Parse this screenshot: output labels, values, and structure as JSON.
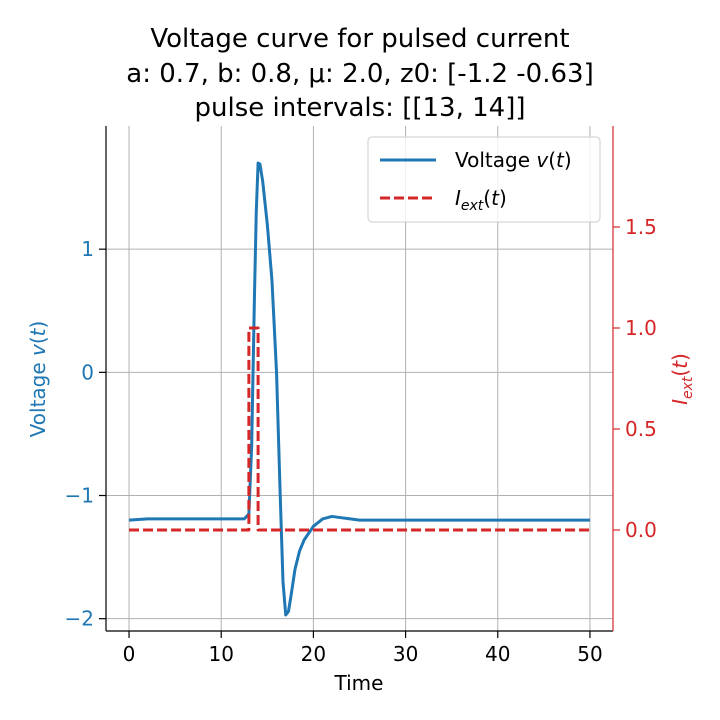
{
  "chart_data": {
    "type": "line",
    "title_lines": [
      "Voltage curve for pulsed current",
      "a: 0.7, b: 0.8, μ: 2.0, z0: [-1.2  -0.63]",
      "pulse intervals: [[13, 14]]"
    ],
    "xlabel": "Time",
    "ylabel_left": "Voltage v(t)",
    "ylabel_right": "I_ext(t)",
    "xlim": [
      -2.5,
      52.5
    ],
    "ylim_left": [
      -2.1,
      2.0
    ],
    "ylim_right": [
      -0.5,
      2.0
    ],
    "x_ticks": [
      "0",
      "10",
      "20",
      "30",
      "40",
      "50"
    ],
    "x_tick_values": [
      0,
      10,
      20,
      30,
      40,
      50
    ],
    "y_left_ticks": [
      "−2",
      "−1",
      "0",
      "1"
    ],
    "y_left_tick_values": [
      -2,
      -1,
      0,
      1
    ],
    "y_right_ticks": [
      "0.0",
      "0.5",
      "1.0",
      "1.5"
    ],
    "y_right_tick_values": [
      0.0,
      0.5,
      1.0,
      1.5
    ],
    "grid": true,
    "legend_position": "top-right",
    "colors": {
      "voltage": "#1f77b4",
      "current": "#d62728"
    },
    "series": [
      {
        "name": "Voltage v(t)",
        "axis": "left",
        "style": "solid",
        "x": [
          0,
          2,
          4,
          6,
          8,
          10,
          12,
          12.5,
          13,
          13.3,
          13.6,
          13.8,
          14,
          14.2,
          14.5,
          15,
          15.5,
          16,
          16.4,
          16.7,
          17,
          17.3,
          17.6,
          18,
          18.5,
          19,
          20,
          21,
          22,
          23,
          24,
          25,
          27,
          30,
          35,
          40,
          45,
          50
        ],
        "values": [
          -1.2,
          -1.19,
          -1.19,
          -1.19,
          -1.19,
          -1.19,
          -1.19,
          -1.19,
          -1.15,
          -0.6,
          0.6,
          1.3,
          1.7,
          1.69,
          1.55,
          1.2,
          0.75,
          0.0,
          -1.0,
          -1.7,
          -1.97,
          -1.94,
          -1.8,
          -1.6,
          -1.45,
          -1.36,
          -1.25,
          -1.19,
          -1.17,
          -1.18,
          -1.19,
          -1.2,
          -1.2,
          -1.2,
          -1.2,
          -1.2,
          -1.2,
          -1.2
        ]
      },
      {
        "name": "I_ext(t)",
        "axis": "right",
        "style": "dashed",
        "x": [
          0,
          13,
          13,
          14,
          14,
          50
        ],
        "values": [
          0,
          0,
          1,
          1,
          0,
          0
        ]
      }
    ]
  },
  "legend": {
    "voltage_label": "Voltage v(t)",
    "current_label": "I_ext(t)"
  }
}
